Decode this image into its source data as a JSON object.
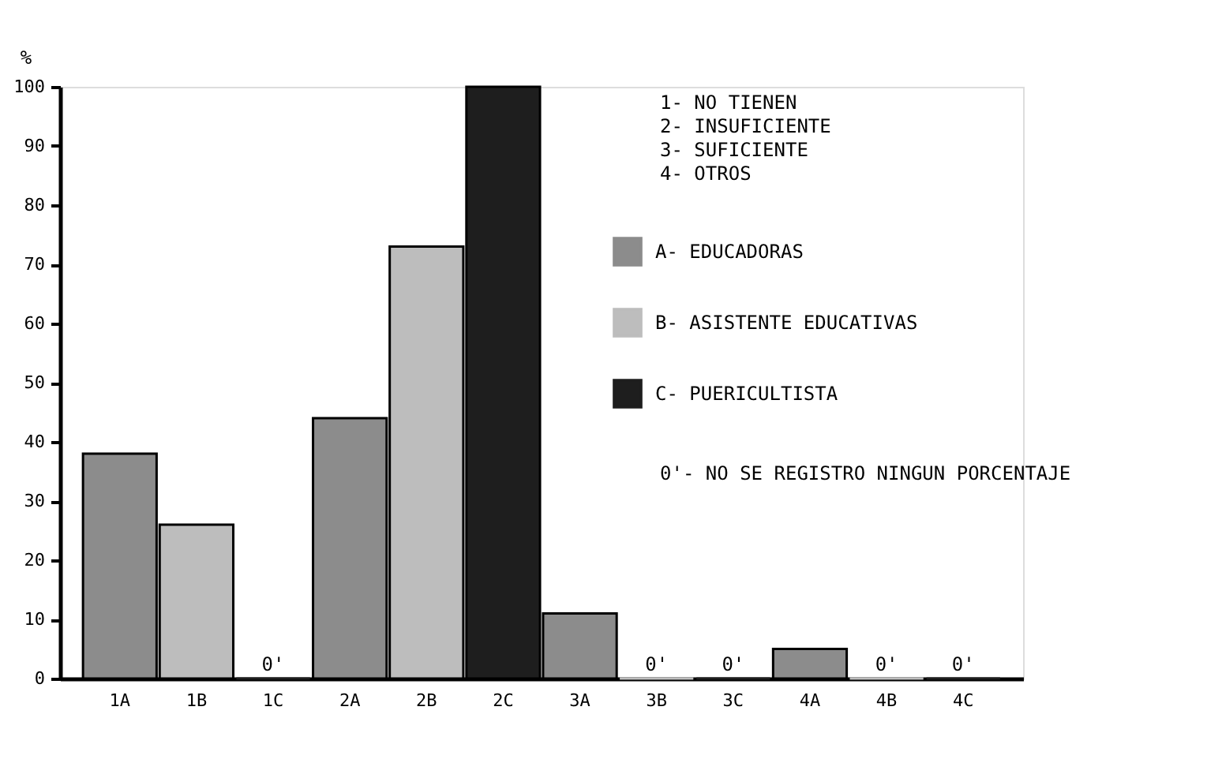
{
  "chart_data": {
    "type": "bar",
    "ylabel": "%",
    "categories": [
      "1A",
      "1B",
      "1C",
      "2A",
      "2B",
      "2C",
      "3A",
      "3B",
      "3C",
      "4A",
      "4B",
      "4C"
    ],
    "series": [
      {
        "name": "A- EDUCADORAS",
        "color": "#8c8c8c",
        "values": [
          38,
          null,
          null,
          44,
          null,
          null,
          11,
          null,
          null,
          5,
          null,
          null
        ],
        "value_labels": [
          null,
          null,
          null,
          null,
          null,
          null,
          null,
          null,
          null,
          null,
          null,
          null
        ]
      },
      {
        "name": "B- ASISTENTE  EDUCATIVAS",
        "color": "#bdbdbd",
        "values": [
          null,
          26,
          null,
          null,
          73,
          null,
          null,
          0,
          null,
          null,
          0,
          null
        ],
        "value_labels": [
          null,
          null,
          null,
          null,
          null,
          null,
          null,
          "0'",
          null,
          null,
          "0'",
          null
        ]
      },
      {
        "name": "C- PUERICULTISTA",
        "color": "#1e1e1e",
        "values": [
          null,
          null,
          0,
          null,
          null,
          100,
          null,
          null,
          0,
          null,
          null,
          0
        ],
        "value_labels": [
          null,
          null,
          "0'",
          null,
          null,
          null,
          null,
          null,
          "0'",
          null,
          null,
          "0'"
        ]
      }
    ],
    "ylim": [
      0,
      100
    ],
    "yticks": [
      0,
      10,
      20,
      30,
      40,
      50,
      60,
      70,
      80,
      90,
      100
    ],
    "grid": false,
    "legend": "top right",
    "annotations": [
      "1- NO TIENEN",
      "2- INSUFICIENTE",
      "3- SUFICIENTE",
      "4- OTROS",
      "0'- NO SE REGISTRO NINGUN PORCENTAJE"
    ]
  }
}
